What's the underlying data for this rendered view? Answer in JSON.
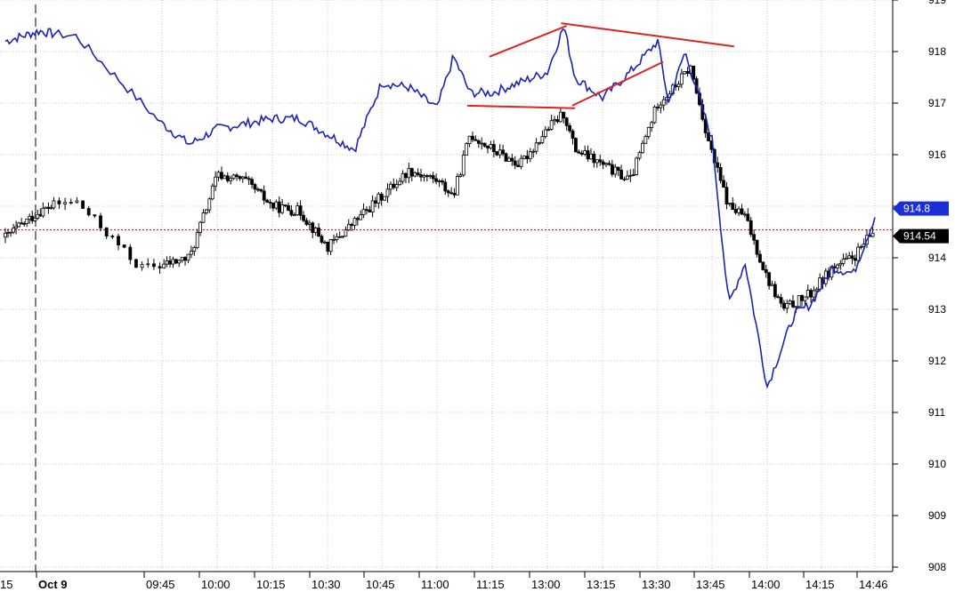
{
  "chart_data": {
    "type": "line",
    "subtype": "candlestick-with-overlay",
    "grid": true,
    "ylim": [
      907.8,
      919.3
    ],
    "x_ticks": [
      "15",
      "Oct 9",
      "09:45",
      "10:00",
      "10:15",
      "10:30",
      "10:45",
      "11:00",
      "11:15",
      "13:00",
      "13:15",
      "13:30",
      "13:45",
      "14:00",
      "14:15",
      "14:46"
    ],
    "y_ticks": [
      908,
      909,
      910,
      911,
      912,
      913,
      914,
      915,
      916,
      917,
      918,
      919
    ],
    "y_ticks_labels": [
      "908",
      "909",
      "910",
      "911",
      "912",
      "913",
      "914",
      "915",
      "916",
      "917",
      "918",
      "919"
    ],
    "session_break_label": "Oct 9",
    "reference_line": {
      "value": 914.54,
      "label": "914.54",
      "color": "#cc0000",
      "style": "dotted"
    },
    "price_labels": [
      {
        "value": 914.8,
        "label": "914.8",
        "color": "#1a2fd6"
      },
      {
        "value": 914.54,
        "label": "914.54",
        "color": "#000000"
      }
    ],
    "series": [
      {
        "kind": "overlay-line",
        "color": "#1a23b8",
        "x": [
          0,
          0.7,
          1.2,
          2.0,
          2.5,
          3.0,
          3.5,
          4.0,
          4.5,
          5.0,
          5.5,
          6.0,
          6.5,
          7.0,
          7.3,
          7.6,
          8.0,
          8.5,
          9.0,
          9.3,
          9.5,
          10.0,
          10.5,
          11.0,
          11.2,
          11.5,
          12.0,
          12.3,
          12.6,
          13.0,
          13.5,
          13.8,
          14.2,
          14.6,
          15.0
        ],
        "y": [
          918.2,
          918.4,
          918.3,
          916.6,
          916.2,
          916.5,
          916.6,
          916.7,
          916.7,
          916.4,
          916.1,
          917.4,
          917.3,
          916.9,
          917.9,
          917.2,
          917.2,
          917.4,
          917.6,
          918.5,
          917.5,
          917.1,
          917.6,
          918.2,
          917.0,
          918.0,
          916.3,
          913.1,
          913.9,
          911.5,
          912.9,
          913.1,
          913.8,
          913.7,
          914.8
        ]
      },
      {
        "kind": "candles-close",
        "color": "#000000",
        "x": [
          0,
          0.7,
          1.2,
          1.8,
          2.5,
          3.0,
          3.5,
          4.0,
          4.5,
          5.0,
          5.5,
          6.0,
          6.5,
          7.0,
          7.3,
          7.6,
          8.0,
          8.5,
          9.0,
          9.3,
          9.5,
          10.0,
          10.5,
          11.0,
          11.3,
          11.6,
          12.0,
          12.3,
          12.6,
          13.0,
          13.3,
          13.8,
          14.2,
          14.6,
          15.0
        ],
        "y": [
          914.4,
          914.9,
          915.1,
          913.8,
          914.0,
          915.6,
          915.5,
          915.0,
          914.9,
          914.2,
          914.7,
          915.2,
          915.7,
          915.5,
          915.2,
          916.4,
          916.1,
          915.8,
          916.5,
          916.8,
          916.1,
          915.8,
          915.5,
          917.0,
          917.3,
          917.7,
          916.0,
          915.0,
          914.8,
          913.6,
          913.0,
          913.3,
          913.8,
          914.0,
          914.54
        ]
      }
    ],
    "trendlines": [
      {
        "color": "#dd2222",
        "points": [
          [
            7.95,
            917.9
          ],
          [
            9.35,
            918.5
          ]
        ]
      },
      {
        "color": "#dd2222",
        "points": [
          [
            9.25,
            918.55
          ],
          [
            12.4,
            918.1
          ]
        ]
      },
      {
        "color": "#dd2222",
        "points": [
          [
            7.55,
            916.95
          ],
          [
            9.5,
            916.9
          ]
        ]
      },
      {
        "color": "#dd2222",
        "points": [
          [
            9.45,
            916.95
          ],
          [
            11.1,
            917.8
          ]
        ]
      }
    ]
  }
}
